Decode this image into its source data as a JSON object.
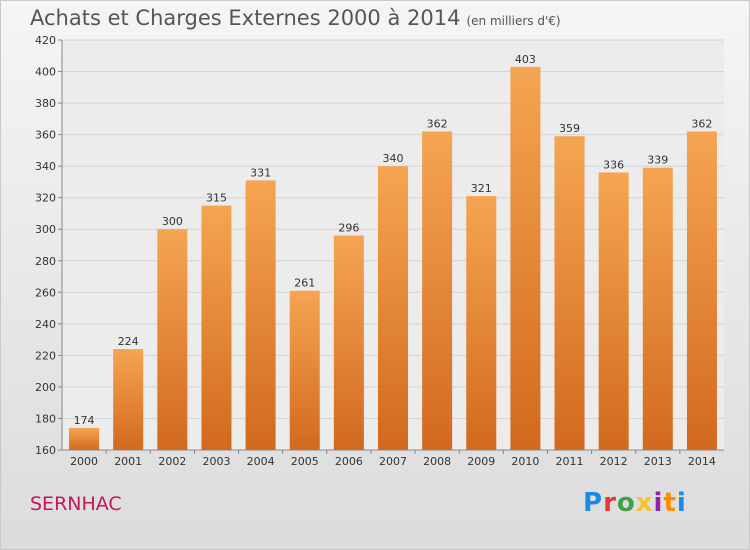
{
  "header": {
    "title": "Achats et Charges Externes 2000 à 2014",
    "subtitle": "(en milliers d'€)"
  },
  "footer": {
    "town": "SERNHAC",
    "logo_text": "Proxiti",
    "logo_colors": [
      "#1e88e5",
      "#e53935",
      "#43a047",
      "#fbc02d",
      "#8e24aa",
      "#fb8c00",
      "#1e88e5"
    ]
  },
  "chart_data": {
    "type": "bar",
    "title": "Achats et Charges Externes 2000 à 2014",
    "subtitle": "(en milliers d'€)",
    "categories": [
      "2000",
      "2001",
      "2002",
      "2003",
      "2004",
      "2005",
      "2006",
      "2007",
      "2008",
      "2009",
      "2010",
      "2011",
      "2012",
      "2013",
      "2014"
    ],
    "values": [
      174,
      224,
      300,
      315,
      331,
      261,
      296,
      340,
      362,
      321,
      403,
      359,
      336,
      339,
      362
    ],
    "ylim": [
      160,
      420
    ],
    "yticks": [
      160,
      180,
      200,
      220,
      240,
      260,
      280,
      300,
      320,
      340,
      360,
      380,
      400,
      420
    ],
    "grid": true,
    "bar_color_top": "#f5a552",
    "bar_color_bottom": "#d2691e"
  }
}
